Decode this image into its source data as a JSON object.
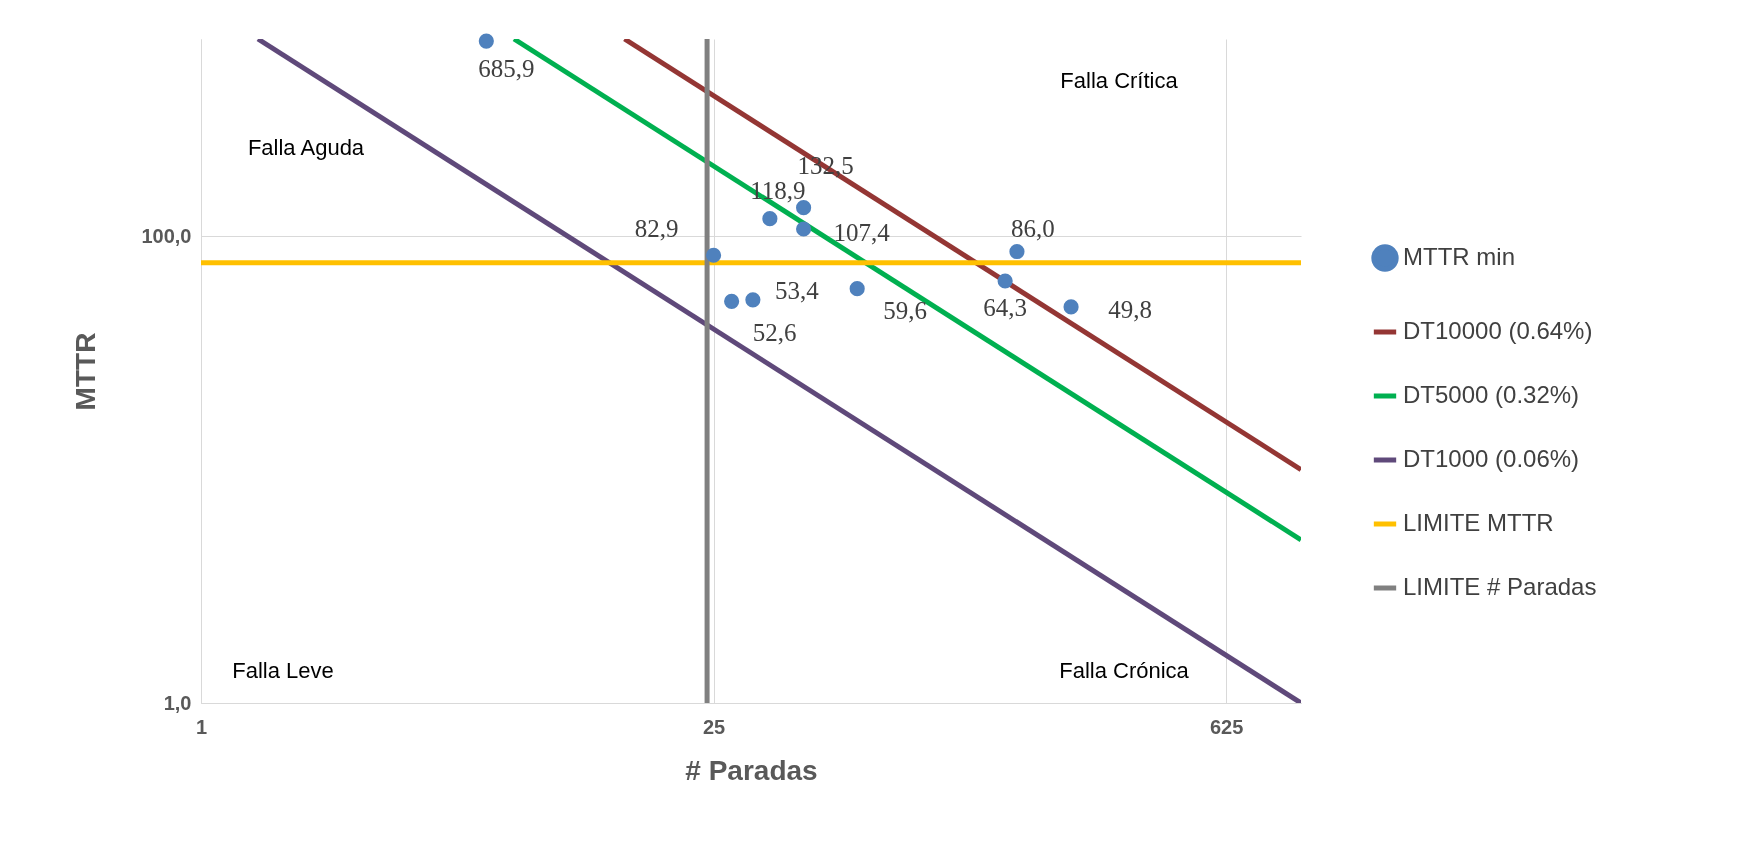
{
  "chart_data": {
    "type": "scatter",
    "xlabel": "# Paradas",
    "ylabel": "MTTR",
    "log": "xy",
    "xlim": [
      1,
      1000
    ],
    "xticks": [
      1,
      25,
      625
    ],
    "ylim": [
      1,
      700
    ],
    "yticks": [
      {
        "value": 1,
        "label": "1,0"
      },
      {
        "value": 100,
        "label": "100,0"
      }
    ],
    "grid": true,
    "legend": "right",
    "annotations": [
      "Falla Crítica",
      "Falla Aguda",
      "Falla Leve",
      "Falla Crónica"
    ],
    "series": [
      {
        "name": "MTTR min",
        "marker": "circle",
        "color": "#4f81bd",
        "x": [
          6,
          25,
          28,
          32,
          35.6,
          44,
          44,
          61.6,
          156,
          168,
          236
        ],
        "values": [
          685.9,
          82.9,
          52.6,
          53.4,
          118.9,
          132.5,
          107.4,
          59.6,
          64.3,
          86.0,
          49.8
        ],
        "value_labels": [
          "685,9",
          "82,9",
          "52,6",
          "53,4",
          "118,9",
          "132,5",
          "107,4",
          "59,6",
          "64,3",
          "86,0",
          "49,8"
        ]
      },
      {
        "name": "DT10000 (0.64%)",
        "type": "line",
        "color": "#943634",
        "x": [
          14.29,
          1000
        ],
        "values": [
          700,
          10
        ]
      },
      {
        "name": "DT5000 (0.32%)",
        "type": "line",
        "color": "#00b050",
        "x": [
          7.14,
          1000
        ],
        "values": [
          700,
          5
        ]
      },
      {
        "name": "DT1000 (0.06%)",
        "type": "line",
        "color": "#5f497a",
        "x": [
          1.43,
          1000
        ],
        "values": [
          700,
          1
        ]
      },
      {
        "name": "LIMITE MTTR",
        "type": "line",
        "color": "#ffc000",
        "x": [
          1,
          1000
        ],
        "values": [
          77,
          77
        ]
      },
      {
        "name": "LIMITE # Paradas",
        "type": "line",
        "color": "#808080",
        "x": [
          24,
          24
        ],
        "values": [
          1,
          700
        ]
      }
    ]
  }
}
